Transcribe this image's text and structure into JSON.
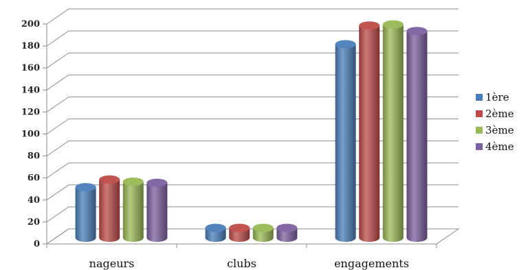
{
  "chart_data": {
    "type": "bar",
    "categories": [
      "nageurs",
      "clubs",
      "engagements"
    ],
    "series": [
      {
        "name": "1ère",
        "values": [
          46,
          9,
          176
        ],
        "color": "#4a7ebb"
      },
      {
        "name": "2ème",
        "values": [
          53,
          9,
          193
        ],
        "color": "#be4b48"
      },
      {
        "name": "3ème",
        "values": [
          51,
          9,
          194
        ],
        "color": "#98b954"
      },
      {
        "name": "4ème",
        "values": [
          50,
          9,
          188
        ],
        "color": "#7d60a0"
      }
    ],
    "ylim": [
      0,
      200
    ],
    "yticks": [
      "0",
      "20",
      "40",
      "60",
      "80",
      "100",
      "120",
      "140",
      "160",
      "180",
      "200"
    ],
    "grid": true,
    "legend": "right",
    "style": "3d-cylinder"
  }
}
